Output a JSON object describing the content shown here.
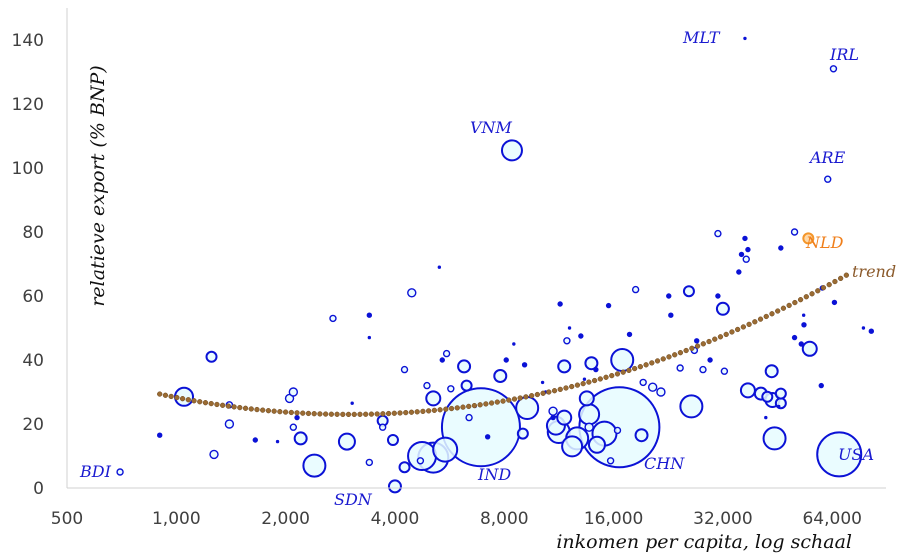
{
  "chart_data": {
    "type": "scatter",
    "title": "",
    "xlabel": "inkomen per capita, log schaal",
    "ylabel": "relatieve export (% BNP)",
    "x_scale": "log",
    "xlim": [
      500,
      90000
    ],
    "ylim": [
      0,
      150
    ],
    "x_ticks": [
      500,
      1000,
      2000,
      4000,
      8000,
      16000,
      32000,
      64000
    ],
    "x_tick_labels": [
      "500",
      "1,000",
      "2,000",
      "4,000",
      "8,000",
      "16,000",
      "32,000",
      "64,000"
    ],
    "y_ticks": [
      0,
      20,
      40,
      60,
      80,
      100,
      120,
      140
    ],
    "y_tick_labels": [
      "0",
      "20",
      "40",
      "60",
      "80",
      "100",
      "120",
      "140"
    ],
    "grid": false,
    "legend": "none",
    "colors": {
      "points": "#0b12d6",
      "fill": "#e6fbff",
      "highlight": "#f4962a",
      "trend": "#9a6b33",
      "country_label": "#1a1ad0",
      "nld_label": "#f07f1b",
      "trend_label": "#8b5a2b"
    },
    "points": [
      {
        "x": 700,
        "y": 5,
        "r": 3,
        "code": "BDI"
      },
      {
        "x": 900,
        "y": 16.5,
        "r": 2
      },
      {
        "x": 1050,
        "y": 28.5,
        "r": 9
      },
      {
        "x": 1250,
        "y": 41,
        "r": 5
      },
      {
        "x": 1270,
        "y": 10.5,
        "r": 4
      },
      {
        "x": 1400,
        "y": 26,
        "r": 3
      },
      {
        "x": 1400,
        "y": 20,
        "r": 4
      },
      {
        "x": 1650,
        "y": 15,
        "r": 2
      },
      {
        "x": 1900,
        "y": 14.5,
        "r": 1
      },
      {
        "x": 2050,
        "y": 28,
        "r": 4
      },
      {
        "x": 2100,
        "y": 30,
        "r": 4
      },
      {
        "x": 2100,
        "y": 19,
        "r": 3
      },
      {
        "x": 2150,
        "y": 22,
        "r": 2
      },
      {
        "x": 2200,
        "y": 15.5,
        "r": 6
      },
      {
        "x": 2400,
        "y": 7,
        "r": 11
      },
      {
        "x": 2700,
        "y": 53,
        "r": 3
      },
      {
        "x": 2950,
        "y": 14.5,
        "r": 8
      },
      {
        "x": 3050,
        "y": 26.5,
        "r": 1
      },
      {
        "x": 3400,
        "y": 54,
        "r": 2
      },
      {
        "x": 3400,
        "y": 47,
        "r": 1
      },
      {
        "x": 3400,
        "y": 8,
        "r": 3
      },
      {
        "x": 3700,
        "y": 21,
        "r": 5
      },
      {
        "x": 3700,
        "y": 19,
        "r": 3
      },
      {
        "x": 3950,
        "y": 15,
        "r": 5
      },
      {
        "x": 4000,
        "y": 0.5,
        "r": 6,
        "code": "SDN"
      },
      {
        "x": 4250,
        "y": 6.5,
        "r": 5
      },
      {
        "x": 4250,
        "y": 37,
        "r": 3
      },
      {
        "x": 4450,
        "y": 61,
        "r": 4
      },
      {
        "x": 4750,
        "y": 10,
        "r": 14
      },
      {
        "x": 4700,
        "y": 8.5,
        "r": 3
      },
      {
        "x": 4900,
        "y": 32,
        "r": 3
      },
      {
        "x": 5100,
        "y": 28,
        "r": 7
      },
      {
        "x": 5100,
        "y": 9.5,
        "r": 15
      },
      {
        "x": 5300,
        "y": 69,
        "r": 1
      },
      {
        "x": 5400,
        "y": 40,
        "r": 2
      },
      {
        "x": 5500,
        "y": 12,
        "r": 12
      },
      {
        "x": 5550,
        "y": 42,
        "r": 3
      },
      {
        "x": 5700,
        "y": 31,
        "r": 3
      },
      {
        "x": 6200,
        "y": 38,
        "r": 6
      },
      {
        "x": 6300,
        "y": 32,
        "r": 5
      },
      {
        "x": 6400,
        "y": 22,
        "r": 3
      },
      {
        "x": 6900,
        "y": 19,
        "r": 39,
        "code": "IND"
      },
      {
        "x": 6650,
        "y": 25.5,
        "r": 1
      },
      {
        "x": 7200,
        "y": 16,
        "r": 2
      },
      {
        "x": 7800,
        "y": 35,
        "r": 6
      },
      {
        "x": 8100,
        "y": 40,
        "r": 2
      },
      {
        "x": 8400,
        "y": 105.5,
        "r": 10,
        "code": "VNM"
      },
      {
        "x": 8500,
        "y": 45,
        "r": 1
      },
      {
        "x": 9000,
        "y": 17,
        "r": 5
      },
      {
        "x": 9250,
        "y": 25,
        "r": 11
      },
      {
        "x": 9100,
        "y": 38.5,
        "r": 2
      },
      {
        "x": 10200,
        "y": 33,
        "r": 1
      },
      {
        "x": 10400,
        "y": 30,
        "r": 1
      },
      {
        "x": 10900,
        "y": 24,
        "r": 4
      },
      {
        "x": 10900,
        "y": 22,
        "r": 2
      },
      {
        "x": 11100,
        "y": 19.5,
        "r": 9
      },
      {
        "x": 11300,
        "y": 17.5,
        "r": 11
      },
      {
        "x": 11400,
        "y": 57.5,
        "r": 2
      },
      {
        "x": 11700,
        "y": 38,
        "r": 6
      },
      {
        "x": 11700,
        "y": 22,
        "r": 7
      },
      {
        "x": 11900,
        "y": 46,
        "r": 3
      },
      {
        "x": 12100,
        "y": 50,
        "r": 1
      },
      {
        "x": 12300,
        "y": 13,
        "r": 10
      },
      {
        "x": 12700,
        "y": 15.5,
        "r": 11
      },
      {
        "x": 13000,
        "y": 47.5,
        "r": 2
      },
      {
        "x": 13300,
        "y": 34,
        "r": 1
      },
      {
        "x": 13500,
        "y": 28,
        "r": 7
      },
      {
        "x": 13700,
        "y": 19,
        "r": 4
      },
      {
        "x": 13700,
        "y": 23,
        "r": 10
      },
      {
        "x": 13900,
        "y": 39,
        "r": 6
      },
      {
        "x": 14400,
        "y": 13.5,
        "r": 8
      },
      {
        "x": 14300,
        "y": 37,
        "r": 2
      },
      {
        "x": 15100,
        "y": 17,
        "r": 12
      },
      {
        "x": 15500,
        "y": 57,
        "r": 2
      },
      {
        "x": 15700,
        "y": 8.5,
        "r": 3
      },
      {
        "x": 16400,
        "y": 18,
        "r": 3
      },
      {
        "x": 16900,
        "y": 40,
        "r": 11
      },
      {
        "x": 16600,
        "y": 19,
        "r": 40,
        "code": "CHN"
      },
      {
        "x": 17700,
        "y": 48,
        "r": 2
      },
      {
        "x": 18400,
        "y": 62,
        "r": 3
      },
      {
        "x": 19100,
        "y": 16.5,
        "r": 6
      },
      {
        "x": 19300,
        "y": 33,
        "r": 3
      },
      {
        "x": 20500,
        "y": 31.5,
        "r": 4
      },
      {
        "x": 21600,
        "y": 30,
        "r": 4
      },
      {
        "x": 22700,
        "y": 60,
        "r": 2
      },
      {
        "x": 23000,
        "y": 54,
        "r": 2
      },
      {
        "x": 24400,
        "y": 37.5,
        "r": 3
      },
      {
        "x": 25800,
        "y": 61.5,
        "r": 5
      },
      {
        "x": 26200,
        "y": 25.5,
        "r": 11
      },
      {
        "x": 26700,
        "y": 43,
        "r": 3
      },
      {
        "x": 27100,
        "y": 46,
        "r": 2
      },
      {
        "x": 28200,
        "y": 37,
        "r": 3
      },
      {
        "x": 29500,
        "y": 40,
        "r": 2
      },
      {
        "x": 31000,
        "y": 60,
        "r": 2
      },
      {
        "x": 31000,
        "y": 79.5,
        "r": 3
      },
      {
        "x": 32000,
        "y": 56,
        "r": 6
      },
      {
        "x": 32300,
        "y": 36.5,
        "r": 3
      },
      {
        "x": 35400,
        "y": 67.5,
        "r": 2
      },
      {
        "x": 36000,
        "y": 73,
        "r": 2
      },
      {
        "x": 36800,
        "y": 140.5,
        "r": 1,
        "code": "MLT"
      },
      {
        "x": 36800,
        "y": 78,
        "r": 2
      },
      {
        "x": 37100,
        "y": 71.5,
        "r": 3
      },
      {
        "x": 37500,
        "y": 74.5,
        "r": 2
      },
      {
        "x": 37500,
        "y": 30.5,
        "r": 7
      },
      {
        "x": 40700,
        "y": 29.5,
        "r": 6
      },
      {
        "x": 42400,
        "y": 28.5,
        "r": 5
      },
      {
        "x": 42000,
        "y": 22,
        "r": 1
      },
      {
        "x": 43800,
        "y": 27.5,
        "r": 7
      },
      {
        "x": 43600,
        "y": 36.5,
        "r": 6
      },
      {
        "x": 44400,
        "y": 15.5,
        "r": 11
      },
      {
        "x": 45600,
        "y": 25.5,
        "r": 1
      },
      {
        "x": 46200,
        "y": 26.5,
        "r": 5
      },
      {
        "x": 46200,
        "y": 29.5,
        "r": 5
      },
      {
        "x": 46200,
        "y": 75,
        "r": 2
      },
      {
        "x": 50400,
        "y": 80,
        "r": 3
      },
      {
        "x": 50400,
        "y": 47,
        "r": 2
      },
      {
        "x": 52600,
        "y": 45,
        "r": 2
      },
      {
        "x": 53500,
        "y": 51,
        "r": 2
      },
      {
        "x": 55500,
        "y": 43.5,
        "r": 7
      },
      {
        "x": 53400,
        "y": 54,
        "r": 1
      },
      {
        "x": 60100,
        "y": 62.5,
        "r": 2
      },
      {
        "x": 59700,
        "y": 32,
        "r": 2
      },
      {
        "x": 62200,
        "y": 96.5,
        "r": 3,
        "code": "ARE"
      },
      {
        "x": 64500,
        "y": 131,
        "r": 3,
        "code": "IRL"
      },
      {
        "x": 64900,
        "y": 58,
        "r": 2
      },
      {
        "x": 66900,
        "y": 10.5,
        "r": 22,
        "code": "USA"
      },
      {
        "x": 78000,
        "y": 50,
        "r": 1
      },
      {
        "x": 82000,
        "y": 49,
        "r": 2
      }
    ],
    "highlight_point": {
      "x": 55000,
      "y": 78,
      "r": 5,
      "code": "NLD"
    },
    "trend": {
      "label": "trend",
      "x_start": 900,
      "x_end": 70000,
      "x_min": 3000,
      "y_min": 23,
      "curvature": 26,
      "markers": 120
    },
    "annotations": [
      "BDI",
      "SDN",
      "IND",
      "VNM",
      "CHN",
      "MLT",
      "IRL",
      "ARE",
      "NLD",
      "USA",
      "trend"
    ]
  }
}
